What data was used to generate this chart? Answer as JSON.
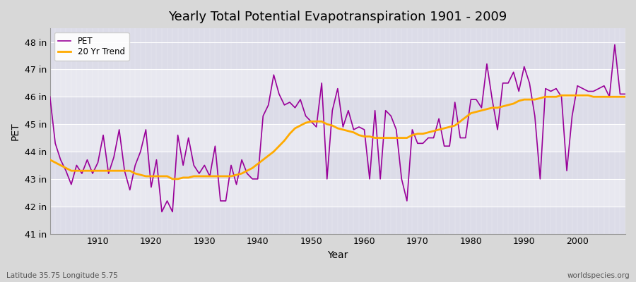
{
  "title": "Yearly Total Potential Evapotranspiration 1901 - 2009",
  "xlabel": "Year",
  "ylabel": "PET",
  "subtitle_left": "Latitude 35.75 Longitude 5.75",
  "subtitle_right": "worldspecies.org",
  "background_color": "#d8d8d8",
  "plot_bg_color": "#e0e0e8",
  "pet_color": "#990099",
  "trend_color": "#ffaa00",
  "ylim": [
    41,
    48.5
  ],
  "xlim": [
    1901,
    2009
  ],
  "ytick_labels": [
    "41 in",
    "42 in",
    "43 in",
    "44 in",
    "45 in",
    "46 in",
    "47 in",
    "48 in"
  ],
  "ytick_values": [
    41,
    42,
    43,
    44,
    45,
    46,
    47,
    48
  ],
  "band_colors": [
    "#dcdce8",
    "#e8e8f0"
  ],
  "years": [
    1901,
    1902,
    1903,
    1904,
    1905,
    1906,
    1907,
    1908,
    1909,
    1910,
    1911,
    1912,
    1913,
    1914,
    1915,
    1916,
    1917,
    1918,
    1919,
    1920,
    1921,
    1922,
    1923,
    1924,
    1925,
    1926,
    1927,
    1928,
    1929,
    1930,
    1931,
    1932,
    1933,
    1934,
    1935,
    1936,
    1937,
    1938,
    1939,
    1940,
    1941,
    1942,
    1943,
    1944,
    1945,
    1946,
    1947,
    1948,
    1949,
    1950,
    1951,
    1952,
    1953,
    1954,
    1955,
    1956,
    1957,
    1958,
    1959,
    1960,
    1961,
    1962,
    1963,
    1964,
    1965,
    1966,
    1967,
    1968,
    1969,
    1970,
    1971,
    1972,
    1973,
    1974,
    1975,
    1976,
    1977,
    1978,
    1979,
    1980,
    1981,
    1982,
    1983,
    1984,
    1985,
    1986,
    1987,
    1988,
    1989,
    1990,
    1991,
    1992,
    1993,
    1994,
    1995,
    1996,
    1997,
    1998,
    1999,
    2000,
    2001,
    2002,
    2003,
    2004,
    2005,
    2006,
    2007,
    2008,
    2009
  ],
  "pet_values": [
    46.0,
    44.3,
    43.7,
    43.3,
    42.8,
    43.5,
    43.2,
    43.7,
    43.2,
    43.6,
    44.6,
    43.2,
    43.8,
    44.8,
    43.3,
    42.6,
    43.5,
    44.0,
    44.8,
    42.7,
    43.7,
    41.8,
    42.2,
    41.8,
    44.6,
    43.5,
    44.5,
    43.5,
    43.2,
    43.5,
    43.1,
    44.2,
    42.2,
    42.2,
    43.5,
    42.8,
    43.7,
    43.2,
    43.0,
    43.0,
    45.3,
    45.7,
    46.8,
    46.1,
    45.7,
    45.8,
    45.6,
    45.9,
    45.3,
    45.1,
    44.9,
    46.5,
    43.0,
    45.5,
    46.3,
    44.9,
    45.5,
    44.8,
    44.9,
    44.8,
    43.0,
    45.5,
    43.0,
    45.5,
    45.3,
    44.8,
    43.0,
    42.2,
    44.8,
    44.3,
    44.3,
    44.5,
    44.5,
    45.2,
    44.2,
    44.2,
    45.8,
    44.5,
    44.5,
    45.9,
    45.9,
    45.6,
    47.2,
    45.9,
    44.8,
    46.5,
    46.5,
    46.9,
    46.2,
    47.1,
    46.5,
    45.3,
    43.0,
    46.3,
    46.2,
    46.3,
    46.0,
    43.3,
    45.3,
    46.4,
    46.3,
    46.2,
    46.2,
    46.3,
    46.4,
    46.0,
    47.9,
    46.1,
    46.1
  ],
  "trend_values": [
    43.7,
    43.6,
    43.5,
    43.4,
    43.3,
    43.3,
    43.3,
    43.3,
    43.3,
    43.3,
    43.3,
    43.3,
    43.3,
    43.3,
    43.3,
    43.3,
    43.2,
    43.15,
    43.1,
    43.1,
    43.1,
    43.1,
    43.1,
    43.0,
    43.0,
    43.05,
    43.05,
    43.1,
    43.1,
    43.1,
    43.1,
    43.1,
    43.1,
    43.1,
    43.1,
    43.15,
    43.2,
    43.3,
    43.4,
    43.55,
    43.7,
    43.85,
    44.0,
    44.2,
    44.4,
    44.65,
    44.85,
    44.95,
    45.05,
    45.1,
    45.1,
    45.1,
    45.0,
    44.95,
    44.85,
    44.8,
    44.75,
    44.7,
    44.6,
    44.55,
    44.55,
    44.5,
    44.5,
    44.5,
    44.5,
    44.5,
    44.5,
    44.5,
    44.6,
    44.65,
    44.65,
    44.7,
    44.75,
    44.8,
    44.85,
    44.9,
    44.95,
    45.1,
    45.25,
    45.4,
    45.45,
    45.5,
    45.55,
    45.6,
    45.6,
    45.65,
    45.7,
    45.75,
    45.85,
    45.9,
    45.9,
    45.9,
    45.95,
    46.0,
    46.0,
    46.0,
    46.05,
    46.05,
    46.05,
    46.05,
    46.05,
    46.05,
    46.0,
    46.0,
    46.0,
    46.0,
    46.0,
    46.0,
    46.0
  ],
  "legend_pet_label": "PET",
  "legend_trend_label": "20 Yr Trend"
}
